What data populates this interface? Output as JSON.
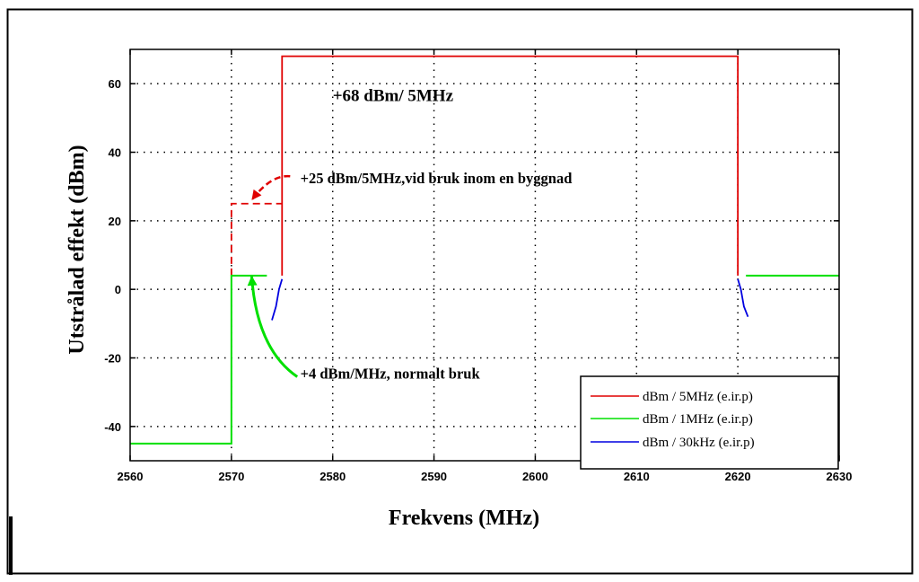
{
  "chart_data": {
    "type": "line",
    "title": "",
    "xlabel": "Frekvens (MHz)",
    "ylabel": "Utstrålad effekt (dBm)",
    "xlim": [
      2560,
      2630
    ],
    "ylim": [
      -50,
      70
    ],
    "x_ticks": [
      2560,
      2570,
      2580,
      2590,
      2600,
      2610,
      2620,
      2630
    ],
    "y_ticks": [
      -40,
      -20,
      0,
      20,
      40,
      60
    ],
    "grid": true,
    "legend_position": "bottom-right",
    "series": [
      {
        "name": "dBm / 5MHz (e.ir.p)",
        "color": "#e00000",
        "style": "solid",
        "points": [
          [
            2575,
            4
          ],
          [
            2575,
            68
          ],
          [
            2620,
            68
          ],
          [
            2620,
            4
          ]
        ]
      },
      {
        "color": "#e00000",
        "style": "dashed",
        "points": [
          [
            2570,
            4
          ],
          [
            2570,
            25
          ],
          [
            2575,
            25
          ]
        ]
      },
      {
        "name": "dBm / 1MHz (e.ir.p)",
        "color": "#00e000",
        "style": "solid",
        "points": [
          [
            2560,
            -45
          ],
          [
            2570,
            -45
          ],
          [
            2570,
            4
          ],
          [
            2573.5,
            4
          ]
        ]
      },
      {
        "color": "#00e000",
        "style": "solid",
        "points": [
          [
            2620.8,
            4
          ],
          [
            2630,
            4
          ]
        ]
      },
      {
        "name": "dBm / 30kHz (e.ir.p)",
        "color": "#0000e0",
        "style": "solid",
        "points": [
          [
            2574,
            -9
          ],
          [
            2574.4,
            -5
          ],
          [
            2574.7,
            0
          ],
          [
            2575,
            3
          ]
        ]
      },
      {
        "color": "#0000e0",
        "style": "solid",
        "points": [
          [
            2620,
            3
          ],
          [
            2620.3,
            0
          ],
          [
            2620.6,
            -5
          ],
          [
            2621,
            -8
          ]
        ]
      }
    ],
    "annotations": [
      {
        "text": "+68 dBm/ 5MHz",
        "x": 2580,
        "y": 55
      },
      {
        "text": "+25 dBm/5MHz,vid bruk inom en byggnad",
        "x": 2576.8,
        "y": 31,
        "arrow_from": [
          2575.8,
          33
        ],
        "arrow_to": [
          2572,
          26
        ],
        "arrow_color": "#e00000",
        "arrow_style": "dashed"
      },
      {
        "text": "+4 dBm/MHz, normalt bruk",
        "x": 2576.8,
        "y": -26,
        "arrow_from": [
          2576.5,
          -25.5
        ],
        "arrow_to": [
          2572,
          4
        ],
        "arrow_color": "#00e000",
        "arrow_style": "solid"
      }
    ]
  }
}
